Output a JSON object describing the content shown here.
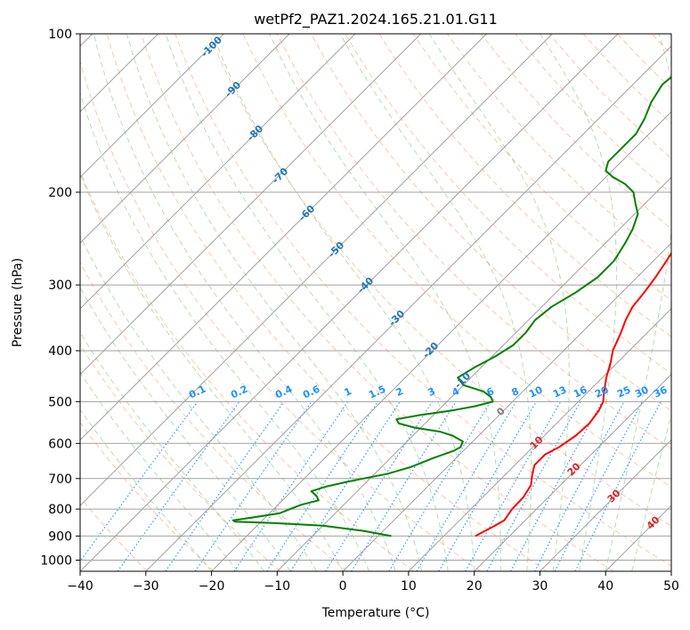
{
  "chart_data": {
    "type": "skew-t",
    "title": "wetPf2_PAZ1.2024.165.21.01.G11",
    "xlabel": "Temperature (°C)",
    "ylabel": "Pressure (hPa)",
    "xlim": [
      -40,
      50
    ],
    "ylim": [
      1050,
      100
    ],
    "y_scale": "log",
    "x_ticks": [
      "−40",
      "−30",
      "−20",
      "−10",
      "0",
      "10",
      "20",
      "30",
      "40",
      "50"
    ],
    "y_ticks": [
      "1000",
      "900",
      "800",
      "700",
      "600",
      "500",
      "400",
      "300",
      "200",
      "100"
    ],
    "x_tick_values": [
      -40,
      -30,
      -20,
      -10,
      0,
      10,
      20,
      30,
      40,
      50
    ],
    "y_tick_values": [
      1000,
      900,
      800,
      700,
      600,
      500,
      400,
      300,
      200,
      100
    ],
    "grid": true,
    "series": [
      {
        "name": "",
        "color": "#ff0000",
        "points": [
          [
            900,
            14.8
          ],
          [
            860,
            16.2
          ],
          [
            840,
            16.8
          ],
          [
            800,
            16.3
          ],
          [
            760,
            16.2
          ],
          [
            720,
            15.5
          ],
          [
            690,
            14.2
          ],
          [
            660,
            13.0
          ],
          [
            630,
            13.0
          ],
          [
            610,
            14.0
          ],
          [
            580,
            14.8
          ],
          [
            550,
            15.0
          ],
          [
            520,
            14.5
          ],
          [
            500,
            13.8
          ],
          [
            480,
            12.5
          ],
          [
            450,
            10.6
          ],
          [
            420,
            8.9
          ],
          [
            400,
            7.5
          ],
          [
            370,
            6.0
          ],
          [
            350,
            4.8
          ],
          [
            330,
            3.8
          ],
          [
            310,
            3.4
          ],
          [
            290,
            2.8
          ],
          [
            270,
            2.0
          ],
          [
            250,
            1.0
          ],
          [
            235,
            0.0
          ],
          [
            225,
            -1.0
          ],
          [
            215,
            -1.0
          ],
          [
            205,
            1.0
          ],
          [
            197,
            4.0
          ],
          [
            190,
            8.0
          ],
          [
            180,
            12.0
          ],
          [
            170,
            15.0
          ],
          [
            160,
            18.0
          ],
          [
            150,
            21.0
          ],
          [
            140,
            24.0
          ],
          [
            130,
            27.5
          ],
          [
            120,
            30.0
          ],
          [
            115,
            30.5
          ],
          [
            110,
            33.0
          ],
          [
            105,
            36.0
          ],
          [
            100,
            38.0
          ]
        ]
      },
      {
        "name": "",
        "color": "#008000",
        "points": [
          [
            900,
            2.0
          ],
          [
            880,
            -3.0
          ],
          [
            860,
            -10.0
          ],
          [
            850,
            -18.0
          ],
          [
            845,
            -24.0
          ],
          [
            840,
            -24.5
          ],
          [
            830,
            -22.0
          ],
          [
            815,
            -18.5
          ],
          [
            800,
            -17.5
          ],
          [
            785,
            -16.5
          ],
          [
            770,
            -14.5
          ],
          [
            755,
            -15.5
          ],
          [
            740,
            -17.0
          ],
          [
            725,
            -15.5
          ],
          [
            710,
            -13.0
          ],
          [
            700,
            -11.0
          ],
          [
            685,
            -8.0
          ],
          [
            665,
            -5.5
          ],
          [
            640,
            -3.5
          ],
          [
            620,
            -1.5
          ],
          [
            610,
            -1.0
          ],
          [
            595,
            -1.5
          ],
          [
            580,
            -4.0
          ],
          [
            570,
            -6.5
          ],
          [
            560,
            -11.0
          ],
          [
            550,
            -14.0
          ],
          [
            540,
            -15.0
          ],
          [
            530,
            -12.0
          ],
          [
            520,
            -8.0
          ],
          [
            510,
            -5.0
          ],
          [
            500,
            -3.0
          ],
          [
            490,
            -4.0
          ],
          [
            478,
            -6.0
          ],
          [
            465,
            -10.0
          ],
          [
            450,
            -12.0
          ],
          [
            430,
            -11.0
          ],
          [
            410,
            -9.5
          ],
          [
            390,
            -8.5
          ],
          [
            370,
            -8.5
          ],
          [
            350,
            -9.0
          ],
          [
            330,
            -8.5
          ],
          [
            310,
            -7.0
          ],
          [
            290,
            -6.0
          ],
          [
            270,
            -6.0
          ],
          [
            250,
            -7.0
          ],
          [
            235,
            -8.0
          ],
          [
            220,
            -9.5
          ],
          [
            210,
            -11.5
          ],
          [
            200,
            -13.5
          ],
          [
            193,
            -16.0
          ],
          [
            187,
            -19.0
          ],
          [
            182,
            -21.0
          ],
          [
            175,
            -22.0
          ],
          [
            165,
            -22.0
          ],
          [
            155,
            -22.0
          ],
          [
            145,
            -23.0
          ],
          [
            135,
            -24.5
          ],
          [
            125,
            -25.5
          ],
          [
            115,
            -25.0
          ],
          [
            110,
            -24.5
          ],
          [
            105,
            -23.5
          ],
          [
            100,
            -22.0
          ]
        ]
      }
    ],
    "isotherm_labels": [
      "-100",
      "-90",
      "-80",
      "-70",
      "-60",
      "-50",
      "-40",
      "-30",
      "-20",
      "-10"
    ],
    "mixing_ratio_labels": [
      "0.1",
      "0.2",
      "0.4",
      "0.6",
      "1",
      "1.5",
      "2",
      "3",
      "4",
      "6",
      "8",
      "10",
      "13",
      "16",
      "20",
      "25",
      "30",
      "36"
    ],
    "moist_adiabat_labels": [
      "0",
      "10",
      "20",
      "30",
      "40"
    ],
    "colors": {
      "temperature": "#ff0000",
      "dewpoint": "#008000",
      "isotherm_label": "#1f77b4",
      "mixing_ratio": "#1e90ff",
      "moist_adiabat_label": "#d62728",
      "zero_label": "#808080",
      "dry_adiabat": "#ff7f50",
      "moist_adiabat": "#2ca02c",
      "grid": "#a0a0a0"
    }
  }
}
